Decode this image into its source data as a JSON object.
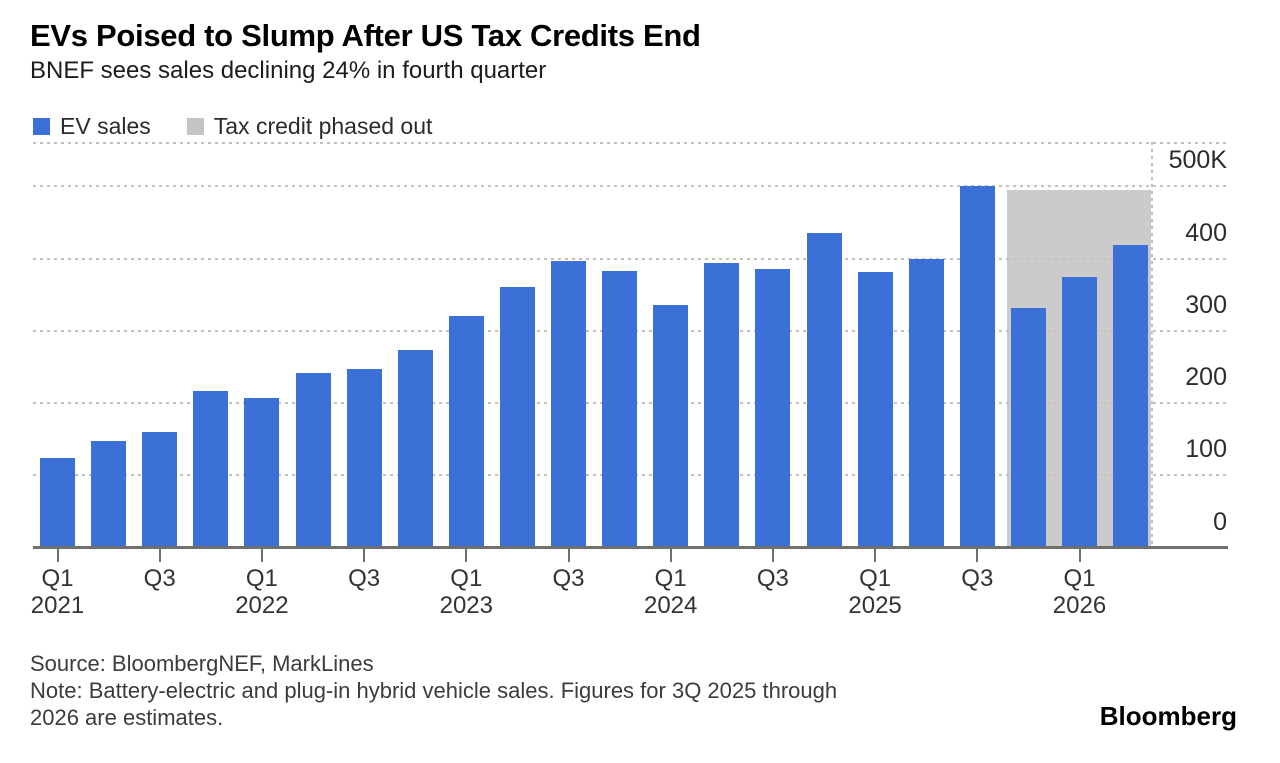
{
  "header": {
    "title": "EVs Poised to Slump After US Tax Credits End",
    "subtitle": "BNEF sees sales declining 24% in fourth quarter"
  },
  "legend": [
    {
      "label": "EV sales",
      "color": "#3b71d6"
    },
    {
      "label": "Tax credit phased out",
      "color": "#c4c4c4"
    }
  ],
  "chart_data": {
    "type": "bar",
    "title": "EVs Poised to Slump After US Tax Credits End",
    "subtitle": "BNEF sees sales declining 24% in fourth quarter",
    "unit": "vehicles, thousands",
    "categories": [
      "Q1 2021",
      "Q2 2021",
      "Q3 2021",
      "Q4 2021",
      "Q1 2022",
      "Q2 2022",
      "Q3 2022",
      "Q4 2022",
      "Q1 2023",
      "Q2 2023",
      "Q3 2023",
      "Q4 2023",
      "Q1 2024",
      "Q2 2024",
      "Q3 2024",
      "Q4 2024",
      "Q1 2025",
      "Q2 2025",
      "Q3 2025",
      "Q4 2025",
      "Q1 2026",
      "Q2 2026"
    ],
    "series": [
      {
        "name": "EV sales",
        "color": "#3b71d6",
        "values": [
          124,
          147,
          160,
          217,
          207,
          242,
          247,
          274,
          321,
          361,
          396,
          383,
          336,
          394,
          386,
          435,
          382,
          399,
          500,
          331,
          375,
          419
        ]
      }
    ],
    "phase_out_region": {
      "label": "Tax credit phased out",
      "color": "#cbcbcb",
      "categories": [
        "Q4 2025",
        "Q1 2026",
        "Q2 2026"
      ],
      "top_value": 495
    },
    "y_axis": {
      "tick_values": [
        0,
        100,
        200,
        300,
        400,
        500
      ],
      "tick_labels": [
        "0",
        "100",
        "200",
        "300",
        "400",
        "500K"
      ],
      "ylim": [
        0,
        560
      ],
      "side": "right"
    },
    "x_axis": {
      "tick_labels": [
        "Q1 2021",
        "Q3",
        "Q1 2022",
        "Q3",
        "Q1 2023",
        "Q3",
        "Q1 2024",
        "Q3",
        "Q1 2025",
        "Q3",
        "Q1 2026"
      ],
      "tick_every": 2
    },
    "grid": "dotted horizontal",
    "legend_position": "top-left"
  },
  "footer": {
    "source": "Source: BloombergNEF, MarkLines",
    "note_line1": "Note: Battery-electric and plug-in hybrid vehicle sales. Figures for 3Q 2025 through",
    "note_line2": "2026 are estimates.",
    "brand": "Bloomberg"
  }
}
